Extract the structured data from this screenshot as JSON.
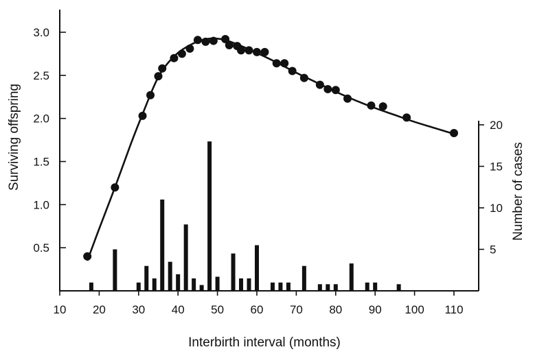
{
  "chart_data": {
    "type": "bar+line+scatter",
    "title": "",
    "xlabel": "Interbirth interval (months)",
    "ylabel_left": "Surviving offspring",
    "ylabel_right": "Number of cases",
    "xlim": [
      10,
      110
    ],
    "xticks": [
      10,
      20,
      30,
      40,
      50,
      60,
      70,
      80,
      90,
      100,
      110
    ],
    "ylim_left": [
      0,
      3.2
    ],
    "yticks_left": [
      0.5,
      1.0,
      1.5,
      2.0,
      2.5,
      3.0
    ],
    "yticks_left_labels": [
      "0.5",
      "1.0",
      "1.5",
      "2.0",
      "2.5",
      "3.0"
    ],
    "ylim_right": [
      0,
      20
    ],
    "yticks_right": [
      5,
      10,
      15,
      20
    ],
    "grid": false,
    "legend": "none",
    "series": [
      {
        "type": "scatter",
        "axis": "left",
        "x": [
          17,
          24,
          31,
          33,
          35,
          36,
          39,
          41,
          43,
          45,
          47,
          49,
          52,
          53,
          55,
          56,
          58,
          60,
          62,
          65,
          67,
          69,
          72,
          76,
          78,
          80,
          83,
          89,
          92,
          98,
          110
        ],
        "y": [
          0.4,
          1.2,
          2.03,
          2.27,
          2.49,
          2.58,
          2.7,
          2.75,
          2.81,
          2.91,
          2.89,
          2.9,
          2.92,
          2.85,
          2.84,
          2.79,
          2.79,
          2.77,
          2.77,
          2.64,
          2.64,
          2.55,
          2.47,
          2.39,
          2.34,
          2.33,
          2.23,
          2.15,
          2.14,
          2.01,
          1.83
        ]
      },
      {
        "type": "line",
        "axis": "left",
        "x": [
          17,
          20,
          24,
          28,
          31,
          35,
          39,
          43,
          47,
          51,
          55,
          60,
          65,
          70,
          75,
          80,
          85,
          90,
          95,
          100,
          105,
          110
        ],
        "y": [
          0.35,
          0.72,
          1.2,
          1.7,
          2.05,
          2.48,
          2.72,
          2.85,
          2.92,
          2.92,
          2.86,
          2.76,
          2.65,
          2.53,
          2.42,
          2.31,
          2.21,
          2.12,
          2.04,
          1.96,
          1.89,
          1.82
        ]
      },
      {
        "type": "bar",
        "axis": "right",
        "x": [
          18,
          24,
          30,
          32,
          34,
          36,
          38,
          40,
          42,
          44,
          46,
          48,
          50,
          54,
          56,
          58,
          60,
          64,
          66,
          68,
          72,
          76,
          78,
          80,
          84,
          88,
          90,
          96
        ],
        "values": [
          1,
          5,
          1,
          3,
          1.5,
          11,
          3.5,
          2,
          8,
          1.5,
          0.7,
          18,
          1.7,
          4.5,
          1.5,
          1.5,
          5.5,
          1,
          1,
          1,
          3,
          0.8,
          0.8,
          0.8,
          3.3,
          1,
          1,
          0.8
        ]
      }
    ]
  }
}
